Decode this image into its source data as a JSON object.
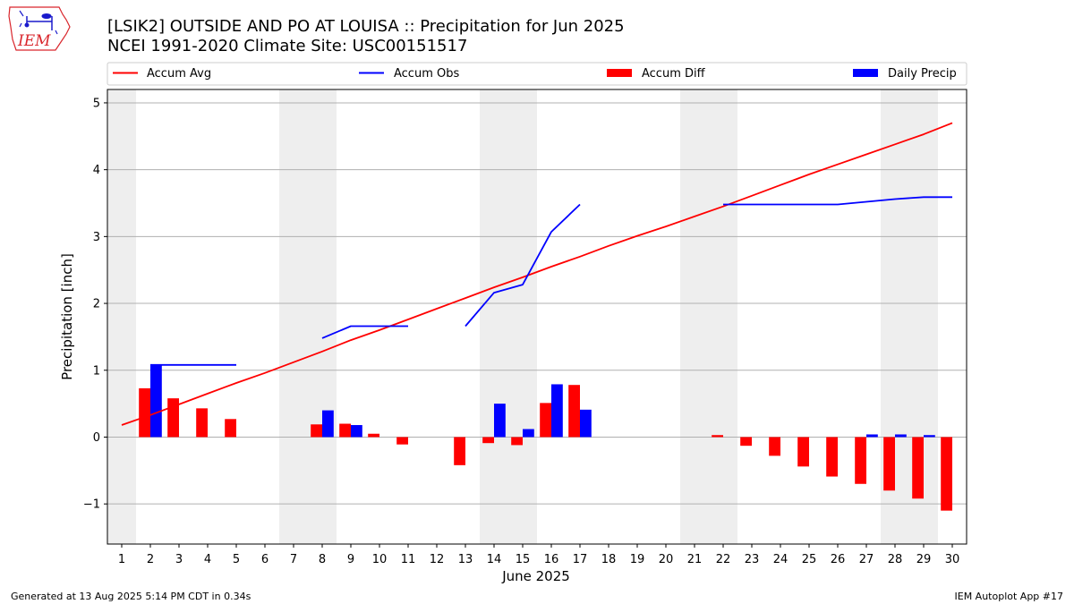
{
  "header": {
    "title_line1": "[LSIK2] OUTSIDE AND PO AT LOUISA :: Precipitation for Jun 2025",
    "title_line2": "NCEI 1991-2020 Climate Site: USC00151517"
  },
  "logo": {
    "text": "IEM"
  },
  "footer": {
    "generated": "Generated at 13 Aug 2025 5:14 PM CDT in 0.34s",
    "app": "IEM Autoplot App #17"
  },
  "colors": {
    "accum_avg": "#ff0000",
    "accum_obs": "#0000ff",
    "accum_diff": "#ff0000",
    "daily_precip": "#0000ff",
    "weekend_shade": "#eeeeee",
    "grid": "#b0b0b0"
  },
  "chart_data": {
    "type": "bar",
    "xlabel": "June 2025",
    "ylabel": "Precipitation [inch]",
    "xlim": [
      0.5,
      30.5
    ],
    "ylim": [
      -1.6,
      5.2
    ],
    "yticks": [
      -1,
      0,
      1,
      2,
      3,
      4,
      5
    ],
    "days": [
      1,
      2,
      3,
      4,
      5,
      6,
      7,
      8,
      9,
      10,
      11,
      12,
      13,
      14,
      15,
      16,
      17,
      18,
      19,
      20,
      21,
      22,
      23,
      24,
      25,
      26,
      27,
      28,
      29,
      30
    ],
    "grid": "horizontal",
    "legend_position": "top",
    "weekend_days": [
      1,
      7,
      8,
      14,
      15,
      21,
      22,
      28,
      29
    ],
    "series": [
      {
        "name": "Accum Avg",
        "kind": "line",
        "segments": [
          [
            [
              1,
              0.18
            ],
            [
              2,
              0.33
            ],
            [
              3,
              0.49
            ],
            [
              4,
              0.65
            ],
            [
              5,
              0.81
            ],
            [
              6,
              0.96
            ],
            [
              7,
              1.12
            ],
            [
              8,
              1.28
            ],
            [
              9,
              1.45
            ],
            [
              10,
              1.6
            ],
            [
              11,
              1.76
            ],
            [
              12,
              1.92
            ],
            [
              13,
              2.08
            ],
            [
              14,
              2.24
            ],
            [
              15,
              2.39
            ],
            [
              16,
              2.55
            ],
            [
              17,
              2.7
            ],
            [
              18,
              2.86
            ],
            [
              19,
              3.01
            ],
            [
              20,
              3.15
            ],
            [
              21,
              3.3
            ],
            [
              22,
              3.45
            ],
            [
              23,
              3.61
            ],
            [
              24,
              3.77
            ],
            [
              25,
              3.93
            ],
            [
              26,
              4.08
            ],
            [
              27,
              4.23
            ],
            [
              28,
              4.38
            ],
            [
              29,
              4.53
            ],
            [
              30,
              4.7
            ]
          ]
        ]
      },
      {
        "name": "Accum Obs",
        "kind": "line",
        "segments": [
          [
            [
              2,
              1.08
            ],
            [
              3,
              1.08
            ],
            [
              4,
              1.08
            ],
            [
              5,
              1.08
            ]
          ],
          [
            [
              8,
              1.48
            ],
            [
              9,
              1.66
            ],
            [
              10,
              1.66
            ],
            [
              11,
              1.66
            ]
          ],
          [
            [
              13,
              1.66
            ],
            [
              14,
              2.16
            ],
            [
              15,
              2.28
            ],
            [
              16,
              3.07
            ],
            [
              17,
              3.48
            ]
          ],
          [
            [
              22,
              3.48
            ],
            [
              23,
              3.48
            ],
            [
              24,
              3.48
            ],
            [
              25,
              3.48
            ],
            [
              26,
              3.48
            ],
            [
              27,
              3.52
            ],
            [
              28,
              3.56
            ],
            [
              29,
              3.59
            ],
            [
              30,
              3.59
            ]
          ]
        ]
      },
      {
        "name": "Accum Diff",
        "kind": "bar",
        "points": [
          [
            2,
            0.73
          ],
          [
            3,
            0.58
          ],
          [
            4,
            0.43
          ],
          [
            5,
            0.27
          ],
          [
            8,
            0.19
          ],
          [
            9,
            0.2
          ],
          [
            10,
            0.05
          ],
          [
            11,
            -0.11
          ],
          [
            13,
            -0.42
          ],
          [
            14,
            -0.09
          ],
          [
            15,
            -0.12
          ],
          [
            16,
            0.51
          ],
          [
            17,
            0.78
          ],
          [
            22,
            0.03
          ],
          [
            23,
            -0.13
          ],
          [
            24,
            -0.28
          ],
          [
            25,
            -0.44
          ],
          [
            26,
            -0.59
          ],
          [
            27,
            -0.7
          ],
          [
            28,
            -0.8
          ],
          [
            29,
            -0.92
          ],
          [
            30,
            -1.1
          ]
        ]
      },
      {
        "name": "Daily Precip",
        "kind": "bar",
        "points": [
          [
            2,
            1.08
          ],
          [
            8,
            0.4
          ],
          [
            9,
            0.18
          ],
          [
            14,
            0.5
          ],
          [
            15,
            0.12
          ],
          [
            16,
            0.79
          ],
          [
            17,
            0.41
          ],
          [
            27,
            0.04
          ],
          [
            28,
            0.04
          ],
          [
            29,
            0.03
          ]
        ]
      }
    ]
  }
}
